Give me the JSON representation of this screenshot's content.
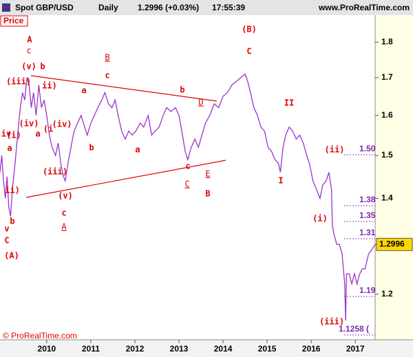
{
  "header": {
    "symbol": "Spot GBP/USD",
    "period": "Daily",
    "quote": "1.2996 (+0.03%)",
    "time": "17:55:39",
    "site": "www.ProRealTime.com"
  },
  "panel_label": "Price",
  "footer": "© ProRealTime.com",
  "chart_data": {
    "type": "line",
    "log_scale": true,
    "grid": false,
    "color": "#9933cc",
    "xlim": [
      2008.94,
      2017.45
    ],
    "xticks": [
      2010,
      2011,
      2012,
      2013,
      2014,
      2015,
      2016,
      2017
    ],
    "ylim": [
      1.12,
      1.88
    ],
    "yticks": [
      1.2,
      1.3,
      1.4,
      1.5,
      1.6,
      1.7,
      1.8
    ],
    "last_price_label": "1.2996",
    "x": [
      2008.94,
      2008.98,
      2009.02,
      2009.06,
      2009.1,
      2009.14,
      2009.18,
      2009.22,
      2009.28,
      2009.34,
      2009.4,
      2009.45,
      2009.5,
      2009.55,
      2009.6,
      2009.65,
      2009.7,
      2009.76,
      2009.82,
      2009.88,
      2009.94,
      2010.0,
      2010.06,
      2010.12,
      2010.2,
      2010.26,
      2010.32,
      2010.38,
      2010.42,
      2010.48,
      2010.55,
      2010.62,
      2010.7,
      2010.78,
      2010.86,
      2010.92,
      2011.0,
      2011.08,
      2011.16,
      2011.25,
      2011.32,
      2011.4,
      2011.48,
      2011.55,
      2011.62,
      2011.7,
      2011.78,
      2011.86,
      2011.94,
      2012.02,
      2012.12,
      2012.2,
      2012.3,
      2012.38,
      2012.46,
      2012.55,
      2012.64,
      2012.72,
      2012.82,
      2012.92,
      2013.0,
      2013.08,
      2013.14,
      2013.2,
      2013.28,
      2013.36,
      2013.44,
      2013.52,
      2013.6,
      2013.7,
      2013.8,
      2013.9,
      2014.0,
      2014.1,
      2014.2,
      2014.3,
      2014.4,
      2014.5,
      2014.56,
      2014.62,
      2014.7,
      2014.78,
      2014.86,
      2014.94,
      2015.02,
      2015.1,
      2015.18,
      2015.26,
      2015.3,
      2015.36,
      2015.42,
      2015.5,
      2015.58,
      2015.66,
      2015.74,
      2015.82,
      2015.9,
      2015.96,
      2016.04,
      2016.12,
      2016.2,
      2016.26,
      2016.34,
      2016.4,
      2016.46,
      2016.48,
      2016.52,
      2016.58,
      2016.64,
      2016.7,
      2016.76,
      2016.78,
      2016.8,
      2016.86,
      2016.92,
      2016.98,
      2017.04,
      2017.1,
      2017.16,
      2017.22,
      2017.3,
      2017.38,
      2017.45
    ],
    "series": [
      {
        "name": "Price",
        "values": [
          1.46,
          1.5,
          1.44,
          1.4,
          1.45,
          1.38,
          1.36,
          1.42,
          1.48,
          1.55,
          1.62,
          1.66,
          1.64,
          1.7,
          1.68,
          1.62,
          1.66,
          1.6,
          1.68,
          1.62,
          1.64,
          1.6,
          1.55,
          1.52,
          1.5,
          1.53,
          1.48,
          1.45,
          1.44,
          1.48,
          1.52,
          1.56,
          1.58,
          1.6,
          1.57,
          1.55,
          1.58,
          1.6,
          1.62,
          1.64,
          1.66,
          1.63,
          1.62,
          1.64,
          1.6,
          1.56,
          1.54,
          1.56,
          1.55,
          1.56,
          1.58,
          1.57,
          1.6,
          1.55,
          1.56,
          1.57,
          1.6,
          1.62,
          1.61,
          1.62,
          1.6,
          1.55,
          1.51,
          1.49,
          1.52,
          1.54,
          1.52,
          1.55,
          1.58,
          1.6,
          1.63,
          1.62,
          1.65,
          1.66,
          1.68,
          1.69,
          1.7,
          1.71,
          1.69,
          1.66,
          1.62,
          1.6,
          1.57,
          1.56,
          1.52,
          1.51,
          1.49,
          1.48,
          1.46,
          1.52,
          1.55,
          1.57,
          1.56,
          1.54,
          1.55,
          1.53,
          1.5,
          1.48,
          1.44,
          1.42,
          1.4,
          1.43,
          1.44,
          1.46,
          1.42,
          1.34,
          1.32,
          1.3,
          1.3,
          1.28,
          1.22,
          1.15,
          1.24,
          1.24,
          1.22,
          1.24,
          1.22,
          1.24,
          1.25,
          1.25,
          1.28,
          1.29,
          1.3
        ]
      }
    ],
    "levels": [
      "1.50",
      "1.38",
      "1.35",
      "1.31",
      "1.19",
      "1.1258 ("
    ],
    "annotations": [
      "A",
      "c",
      "(v)",
      "b",
      "(iii)",
      "ii)",
      "a",
      "B",
      "c",
      "b",
      "D",
      "(iv)",
      "(i",
      "a",
      "(iv)",
      "b",
      "a",
      "(iii)",
      "(v)",
      "c",
      "A",
      "c",
      "C",
      "E",
      "B",
      "(B)",
      "C",
      "II",
      "I",
      "(ii)",
      "(i)",
      "(iii)",
      "C",
      "(A)",
      "v",
      "b",
      "iv",
      "(i)",
      "a",
      "ii)"
    ]
  }
}
